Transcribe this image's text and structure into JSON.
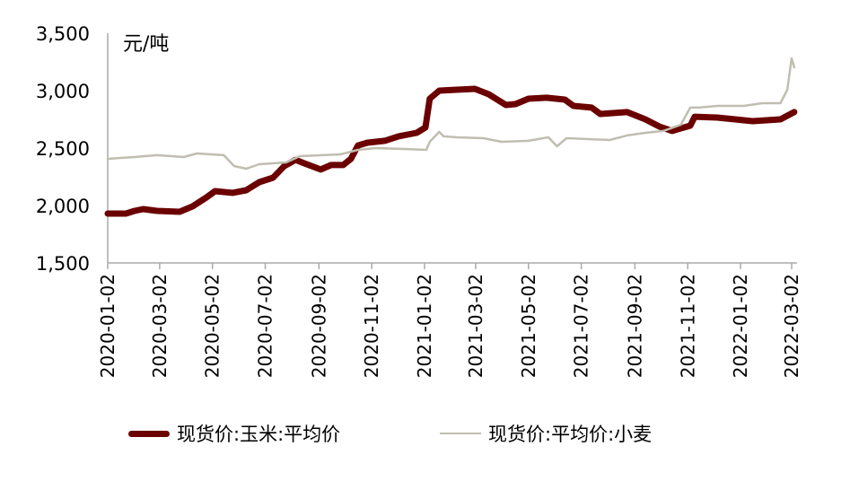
{
  "chart_data": {
    "type": "line",
    "unit_label": "元/吨",
    "ylim": [
      1500,
      3500
    ],
    "yticks": [
      "1,500",
      "2,000",
      "2,500",
      "3,000",
      "3,500"
    ],
    "ytick_values": [
      1500,
      2000,
      2500,
      3000,
      3500
    ],
    "xlim": [
      "2020-01-02",
      "2022-03-05"
    ],
    "xticks": [
      "2020-01-02",
      "2020-03-02",
      "2020-05-02",
      "2020-07-02",
      "2020-09-02",
      "2020-11-02",
      "2021-01-02",
      "2021-03-02",
      "2021-05-02",
      "2021-07-02",
      "2021-09-02",
      "2021-11-02",
      "2022-01-02",
      "2022-03-02"
    ],
    "grid": false,
    "legend_position": "bottom",
    "series": [
      {
        "name": "现货价:玉米:平均价",
        "color": "#6b0000",
        "points": [
          [
            "2020-01-02",
            1930
          ],
          [
            "2020-01-23",
            1930
          ],
          [
            "2020-02-02",
            1953
          ],
          [
            "2020-02-12",
            1969
          ],
          [
            "2020-02-28",
            1953
          ],
          [
            "2020-03-25",
            1945
          ],
          [
            "2020-04-09",
            1992
          ],
          [
            "2020-04-25",
            2070
          ],
          [
            "2020-05-05",
            2125
          ],
          [
            "2020-05-25",
            2110
          ],
          [
            "2020-06-10",
            2133
          ],
          [
            "2020-06-25",
            2203
          ],
          [
            "2020-07-11",
            2242
          ],
          [
            "2020-07-24",
            2344
          ],
          [
            "2020-08-06",
            2398
          ],
          [
            "2020-08-16",
            2367
          ],
          [
            "2020-09-04",
            2313
          ],
          [
            "2020-09-16",
            2352
          ],
          [
            "2020-09-30",
            2352
          ],
          [
            "2020-10-09",
            2406
          ],
          [
            "2020-10-17",
            2523
          ],
          [
            "2020-10-28",
            2547
          ],
          [
            "2020-11-17",
            2563
          ],
          [
            "2020-12-03",
            2602
          ],
          [
            "2020-12-24",
            2633
          ],
          [
            "2021-01-03",
            2680
          ],
          [
            "2021-01-08",
            2930
          ],
          [
            "2021-01-19",
            3000
          ],
          [
            "2021-02-08",
            3008
          ],
          [
            "2021-03-01",
            3016
          ],
          [
            "2021-03-17",
            2969
          ],
          [
            "2021-04-06",
            2875
          ],
          [
            "2021-04-17",
            2883
          ],
          [
            "2021-05-02",
            2930
          ],
          [
            "2021-05-23",
            2938
          ],
          [
            "2021-06-13",
            2922
          ],
          [
            "2021-06-23",
            2867
          ],
          [
            "2021-07-14",
            2852
          ],
          [
            "2021-07-24",
            2797
          ],
          [
            "2021-08-24",
            2813
          ],
          [
            "2021-09-14",
            2750
          ],
          [
            "2021-09-30",
            2688
          ],
          [
            "2021-10-15",
            2649
          ],
          [
            "2021-11-05",
            2695
          ],
          [
            "2021-11-10",
            2773
          ],
          [
            "2021-12-06",
            2766
          ],
          [
            "2022-01-16",
            2734
          ],
          [
            "2022-02-17",
            2750
          ],
          [
            "2022-03-05",
            2813
          ]
        ]
      },
      {
        "name": "现货价:平均价:小麦",
        "color": "#c0beb0",
        "points": [
          [
            "2020-01-02",
            2406
          ],
          [
            "2020-02-02",
            2422
          ],
          [
            "2020-02-28",
            2438
          ],
          [
            "2020-03-30",
            2422
          ],
          [
            "2020-04-14",
            2453
          ],
          [
            "2020-05-15",
            2438
          ],
          [
            "2020-05-27",
            2344
          ],
          [
            "2020-06-10",
            2320
          ],
          [
            "2020-06-25",
            2359
          ],
          [
            "2020-07-26",
            2375
          ],
          [
            "2020-08-11",
            2430
          ],
          [
            "2020-09-27",
            2445
          ],
          [
            "2020-10-17",
            2484
          ],
          [
            "2020-11-07",
            2500
          ],
          [
            "2020-12-08",
            2492
          ],
          [
            "2021-01-04",
            2484
          ],
          [
            "2021-01-08",
            2555
          ],
          [
            "2021-01-19",
            2641
          ],
          [
            "2021-01-24",
            2602
          ],
          [
            "2021-02-08",
            2594
          ],
          [
            "2021-03-11",
            2586
          ],
          [
            "2021-04-01",
            2555
          ],
          [
            "2021-05-02",
            2563
          ],
          [
            "2021-05-25",
            2594
          ],
          [
            "2021-06-04",
            2516
          ],
          [
            "2021-06-15",
            2586
          ],
          [
            "2021-08-04",
            2570
          ],
          [
            "2021-08-24",
            2610
          ],
          [
            "2021-09-14",
            2633
          ],
          [
            "2021-10-05",
            2649
          ],
          [
            "2021-10-25",
            2703
          ],
          [
            "2021-11-05",
            2852
          ],
          [
            "2021-11-15",
            2852
          ],
          [
            "2021-12-06",
            2867
          ],
          [
            "2022-01-06",
            2867
          ],
          [
            "2022-01-27",
            2891
          ],
          [
            "2022-02-17",
            2891
          ],
          [
            "2022-02-25",
            3008
          ],
          [
            "2022-03-02",
            3281
          ],
          [
            "2022-03-05",
            3203
          ]
        ]
      }
    ]
  }
}
